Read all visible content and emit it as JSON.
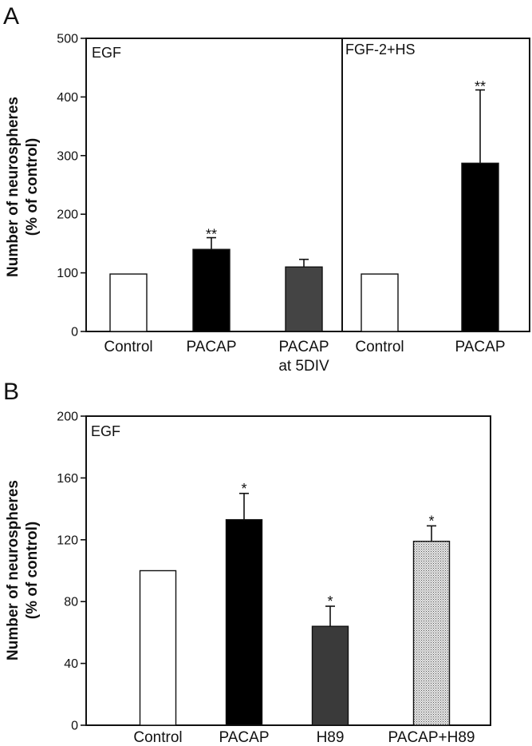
{
  "chart_data": [
    {
      "panel": "A",
      "type": "bar",
      "ylabel": [
        "Number of neurospheres",
        "(% of control)"
      ],
      "ylim": [
        0,
        500
      ],
      "yticks": [
        0,
        100,
        200,
        300,
        400,
        500
      ],
      "grid": false,
      "groups": [
        {
          "condition": "EGF",
          "bars": [
            {
              "category": [
                "Control"
              ],
              "value": 98,
              "error": 0,
              "sig": "",
              "fill": "#ffffff",
              "pattern": "none"
            },
            {
              "category": [
                "PACAP"
              ],
              "value": 140,
              "error": 20,
              "sig": "**",
              "fill": "#000000",
              "pattern": "none"
            },
            {
              "category": [
                "PACAP",
                "at 5DIV"
              ],
              "value": 110,
              "error": 13,
              "sig": "",
              "fill": "#444444",
              "pattern": "none"
            }
          ]
        },
        {
          "condition": "FGF-2+HS",
          "bars": [
            {
              "category": [
                "Control"
              ],
              "value": 98,
              "error": 0,
              "sig": "",
              "fill": "#ffffff",
              "pattern": "none"
            },
            {
              "category": [
                "PACAP"
              ],
              "value": 287,
              "error": 125,
              "sig": "**",
              "fill": "#000000",
              "pattern": "none"
            }
          ]
        }
      ]
    },
    {
      "panel": "B",
      "type": "bar",
      "ylabel": [
        "Number of neurospheres",
        "(% of control)"
      ],
      "ylim": [
        0,
        200
      ],
      "yticks": [
        0,
        40,
        80,
        120,
        160,
        200
      ],
      "grid": false,
      "groups": [
        {
          "condition": "EGF",
          "bars": [
            {
              "category": [
                "Control"
              ],
              "value": 100,
              "error": 0,
              "sig": "",
              "fill": "#ffffff",
              "pattern": "none"
            },
            {
              "category": [
                "PACAP"
              ],
              "value": 133,
              "error": 17,
              "sig": "*",
              "fill": "#000000",
              "pattern": "none"
            },
            {
              "category": [
                "H89"
              ],
              "value": 64,
              "error": 13,
              "sig": "*",
              "fill": "#3a3a3a",
              "pattern": "none"
            },
            {
              "category": [
                "PACAP+H89"
              ],
              "value": 119,
              "error": 10,
              "sig": "*",
              "fill": "#d8d8d8",
              "pattern": "stipple"
            }
          ]
        }
      ]
    }
  ]
}
